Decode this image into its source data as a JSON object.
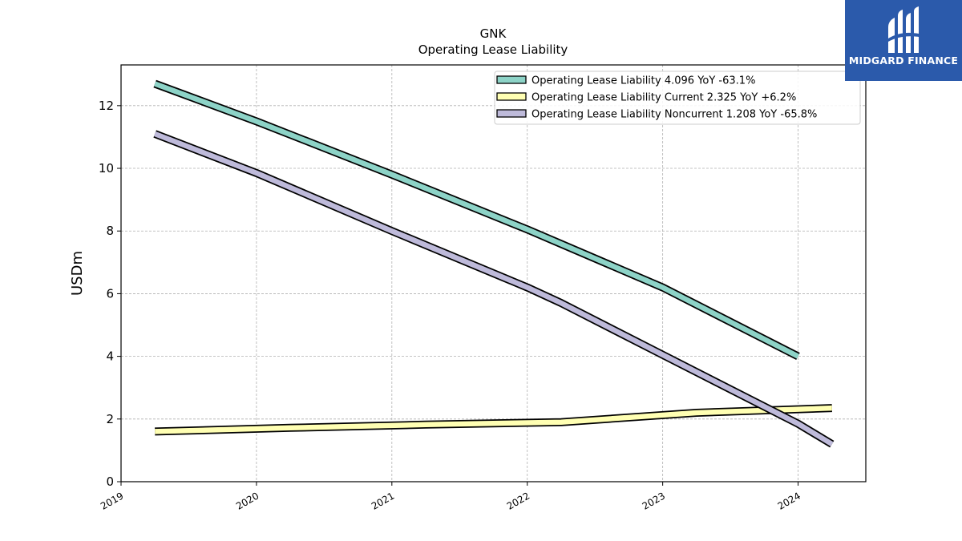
{
  "chart_data": {
    "type": "line",
    "title": "GNK",
    "subtitle": "Operating Lease Liability",
    "ylabel": "USDm",
    "xlabel": "",
    "xlim": [
      2019.0,
      2024.5
    ],
    "ylim": [
      0,
      13.3
    ],
    "yticks": [
      0,
      2,
      4,
      6,
      8,
      10,
      12
    ],
    "xticks": [
      2019,
      2020,
      2021,
      2022,
      2023,
      2024
    ],
    "xtick_labels": [
      "2019",
      "2020",
      "2021",
      "2022",
      "2023",
      "2024"
    ],
    "grid": true,
    "legend_position": "top-right",
    "series": [
      {
        "name": "Operating Lease Liability",
        "legend_label": "Operating Lease Liability  4.096 YoY -63.1%",
        "color": "#8dd3c7",
        "x": [
          2019.25,
          2020.0,
          2021.0,
          2022.0,
          2023.0,
          2024.0
        ],
        "y": [
          12.7,
          11.5,
          9.8,
          8.05,
          6.2,
          4.0
        ]
      },
      {
        "name": "Operating Lease Liability Current",
        "legend_label": "Operating Lease Liability Current  2.325 YoY +6.2%",
        "color": "#ffffb3",
        "x": [
          2019.25,
          2020.25,
          2021.25,
          2022.25,
          2023.25,
          2024.25
        ],
        "y": [
          1.6,
          1.72,
          1.82,
          1.9,
          2.2,
          2.35
        ]
      },
      {
        "name": "Operating Lease Liability Noncurrent",
        "legend_label": "Operating Lease Liability Noncurrent  1.208 YoY -65.8%",
        "color": "#bebada",
        "x": [
          2019.25,
          2020.0,
          2021.0,
          2022.0,
          2022.25,
          2023.0,
          2024.0,
          2024.25
        ],
        "y": [
          11.1,
          9.85,
          8.0,
          6.2,
          5.7,
          4.05,
          1.85,
          1.2
        ]
      }
    ]
  },
  "logo": {
    "text": "MIDGARD FINANCE",
    "bg_color": "#2b5aab"
  }
}
